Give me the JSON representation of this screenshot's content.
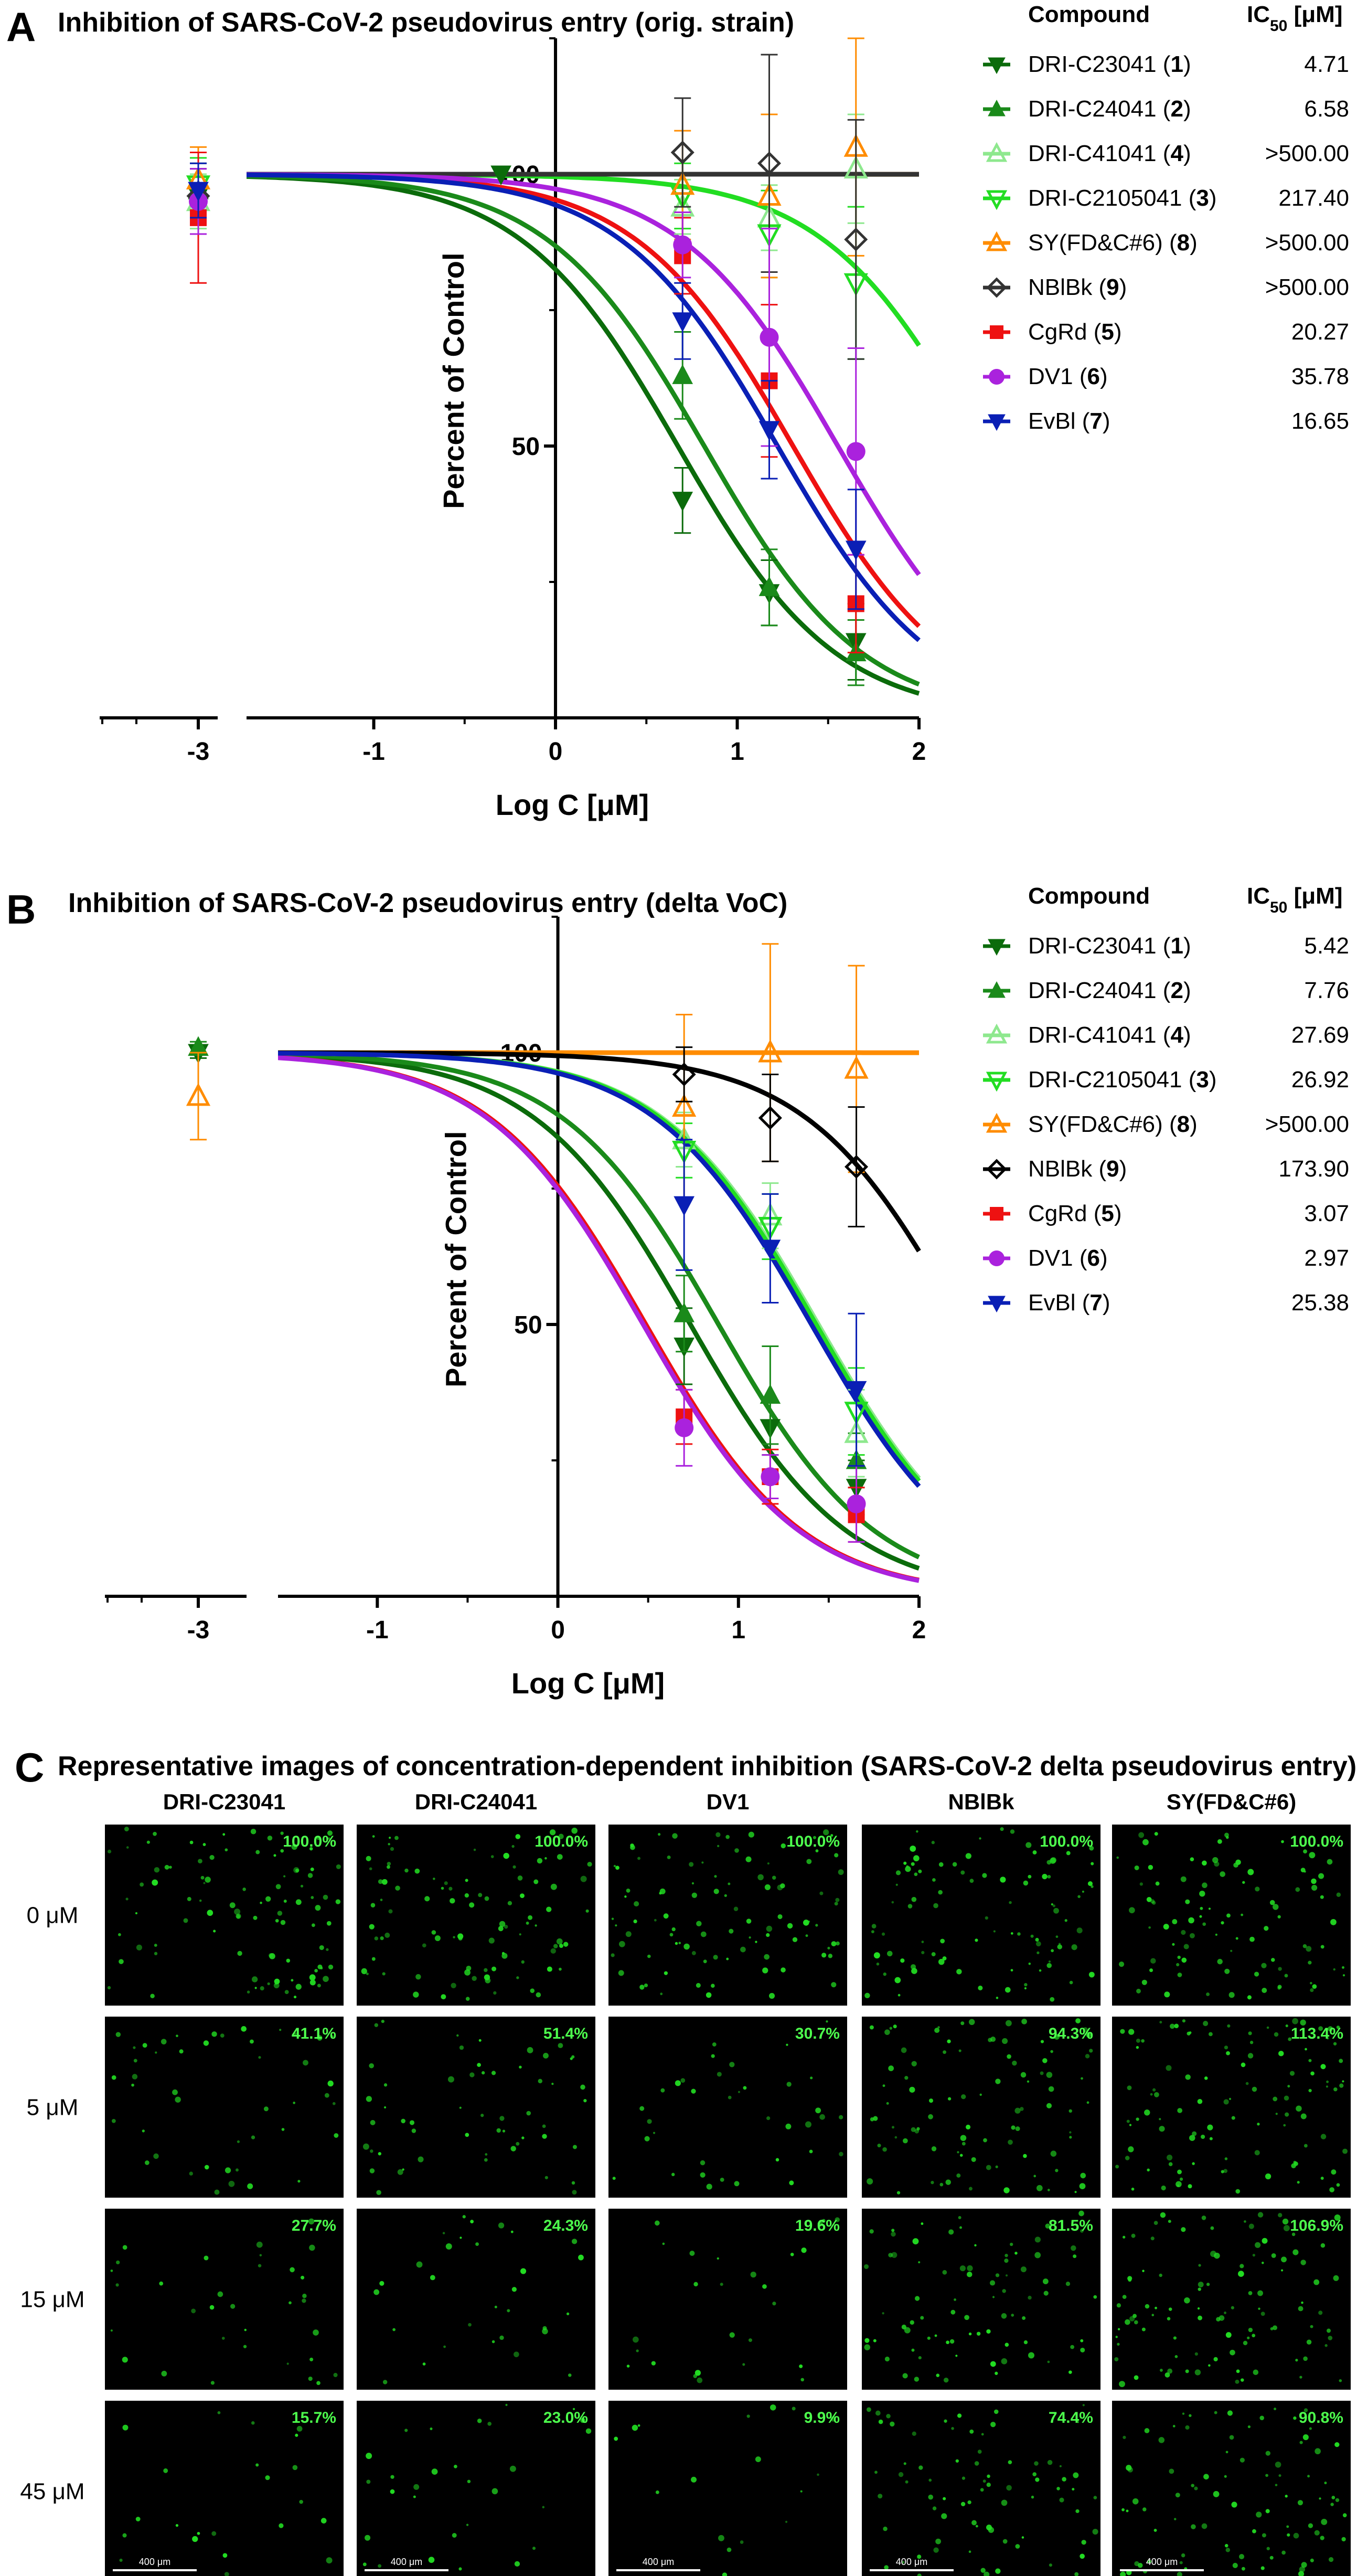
{
  "chart_data": [
    {
      "type": "line",
      "panel": "A",
      "title": "Inhibition of SARS-CoV-2 pseudovirus entry (orig. strain)",
      "xlabel": "Log C [μM]",
      "ylabel": "Percent of Control",
      "xlim": [
        -1.7,
        2
      ],
      "ylim": [
        0,
        125
      ],
      "x_ticks": [
        "-3",
        "-1",
        "0",
        "1",
        "2"
      ],
      "y_ticks": [
        "50",
        "100"
      ],
      "legend_header": {
        "compound": "Compound",
        "ic50": "IC",
        "ic50_sub": "50",
        "ic50_unit": " [μM]"
      },
      "series": [
        {
          "name": "DRI-C23041",
          "num": "1",
          "ic50": "4.71",
          "ic50_val": 4.71,
          "color": "#0b6b0b",
          "marker": "tri-down-filled",
          "points": [
            {
              "x": -3,
              "y": 96,
              "err": 5
            },
            {
              "x": -0.3,
              "y": 100,
              "err": 0
            },
            {
              "x": 0.699,
              "y": 40,
              "err": 6
            },
            {
              "x": 1.176,
              "y": 23,
              "err": 6
            },
            {
              "x": 1.653,
              "y": 14,
              "err": 7
            }
          ]
        },
        {
          "name": "DRI-C24041",
          "num": "2",
          "ic50": "6.58",
          "ic50_val": 6.58,
          "color": "#1a8a1a",
          "marker": "tri-up-filled",
          "points": [
            {
              "x": -3,
              "y": 97,
              "err": 5
            },
            {
              "x": 0.699,
              "y": 63,
              "err": 8
            },
            {
              "x": 1.176,
              "y": 24,
              "err": 7
            },
            {
              "x": 1.653,
              "y": 12,
              "err": 6
            }
          ]
        },
        {
          "name": "DRI-C41041",
          "num": "4",
          "ic50": ">500.00",
          "ic50_val": null,
          "color": "#8ee88e",
          "marker": "tri-up-open",
          "points": [
            {
              "x": -3,
              "y": 95,
              "err": 5
            },
            {
              "x": 0.699,
              "y": 94,
              "err": 5
            },
            {
              "x": 1.176,
              "y": 92,
              "err": 6
            },
            {
              "x": 1.653,
              "y": 101,
              "err": 10
            }
          ]
        },
        {
          "name": "DRI-C2105041",
          "num": "3",
          "ic50": "217.40",
          "ic50_val": 217.4,
          "color": "#22dd22",
          "marker": "tri-down-open",
          "points": [
            {
              "x": -3,
              "y": 98,
              "err": 5
            },
            {
              "x": 0.699,
              "y": 96,
              "err": 6
            },
            {
              "x": 1.176,
              "y": 89,
              "err": 8
            },
            {
              "x": 1.653,
              "y": 80,
              "err": 14
            }
          ]
        },
        {
          "name": "SY(FD&C#6)",
          "num": "8",
          "ic50": ">500.00",
          "ic50_val": null,
          "color": "#ff8c00",
          "marker": "tri-up-open",
          "points": [
            {
              "x": -3,
              "y": 99,
              "err": 6
            },
            {
              "x": 0.699,
              "y": 98,
              "err": 10
            },
            {
              "x": 1.176,
              "y": 96,
              "err": 15
            },
            {
              "x": 1.653,
              "y": 105,
              "err": 20
            }
          ]
        },
        {
          "name": "NBlBk",
          "num": "9",
          "ic50": ">500.00",
          "ic50_val": null,
          "color": "#333333",
          "marker": "diamond-open",
          "points": [
            {
              "x": -3,
              "y": 96,
              "err": 5
            },
            {
              "x": 0.699,
              "y": 104,
              "err": 10
            },
            {
              "x": 1.176,
              "y": 102,
              "err": 20
            },
            {
              "x": 1.653,
              "y": 88,
              "err": 22
            }
          ]
        },
        {
          "name": "CgRd",
          "num": "5",
          "ic50": "20.27",
          "ic50_val": 20.27,
          "color": "#ee1111",
          "marker": "square",
          "points": [
            {
              "x": -3,
              "y": 92,
              "err": 12
            },
            {
              "x": 0.699,
              "y": 85,
              "err": 7
            },
            {
              "x": 1.176,
              "y": 62,
              "err": 14
            },
            {
              "x": 1.653,
              "y": 21,
              "err": 9
            }
          ]
        },
        {
          "name": "DV1",
          "num": "6",
          "ic50": "35.78",
          "ic50_val": 35.78,
          "color": "#aa22dd",
          "marker": "circle",
          "points": [
            {
              "x": -3,
              "y": 95,
              "err": 6
            },
            {
              "x": 0.699,
              "y": 87,
              "err": 6
            },
            {
              "x": 1.176,
              "y": 70,
              "err": 20
            },
            {
              "x": 1.653,
              "y": 49,
              "err": 19
            }
          ]
        },
        {
          "name": "EvBl",
          "num": "7",
          "ic50": "16.65",
          "ic50_val": 16.65,
          "color": "#0a1fb5",
          "marker": "tri-down-filled",
          "points": [
            {
              "x": -3,
              "y": 97,
              "err": 5
            },
            {
              "x": 0.699,
              "y": 73,
              "err": 7
            },
            {
              "x": 1.176,
              "y": 53,
              "err": 9
            },
            {
              "x": 1.653,
              "y": 31,
              "err": 11
            }
          ]
        }
      ]
    },
    {
      "type": "line",
      "panel": "B",
      "title": "Inhibition of SARS-CoV-2 pseudovirus entry (delta VoC)",
      "xlabel": "Log C [μM]",
      "ylabel": "Percent of Control",
      "xlim": [
        -1.55,
        2
      ],
      "ylim": [
        0,
        125
      ],
      "x_ticks": [
        "-3",
        "-1",
        "0",
        "1",
        "2"
      ],
      "y_ticks": [
        "50",
        "100"
      ],
      "legend_header": {
        "compound": "Compound",
        "ic50": "IC",
        "ic50_sub": "50",
        "ic50_unit": " [μM]"
      },
      "series": [
        {
          "name": "DRI-C23041",
          "num": "1",
          "ic50": "5.42",
          "ic50_val": 5.42,
          "color": "#0b6b0b",
          "marker": "tri-down-filled",
          "points": [
            {
              "x": -3,
              "y": 100,
              "err": 1
            },
            {
              "x": 0.699,
              "y": 46,
              "err": 7
            },
            {
              "x": 1.176,
              "y": 31,
              "err": 5
            },
            {
              "x": 1.653,
              "y": 20,
              "err": 5
            }
          ]
        },
        {
          "name": "DRI-C24041",
          "num": "2",
          "ic50": "7.76",
          "ic50_val": 7.76,
          "color": "#1a8a1a",
          "marker": "tri-up-filled",
          "points": [
            {
              "x": -3,
              "y": 101,
              "err": 1
            },
            {
              "x": 0.699,
              "y": 52,
              "err": 7
            },
            {
              "x": 1.176,
              "y": 37,
              "err": 9
            },
            {
              "x": 1.653,
              "y": 25,
              "err": 5
            }
          ]
        },
        {
          "name": "DRI-C41041",
          "num": "4",
          "ic50": "27.69",
          "ic50_val": 27.69,
          "color": "#8ee88e",
          "marker": "tri-up-open",
          "points": [
            {
              "x": 0.699,
              "y": 84,
              "err": 5
            },
            {
              "x": 1.176,
              "y": 70,
              "err": 6
            },
            {
              "x": 1.653,
              "y": 30,
              "err": 8
            }
          ]
        },
        {
          "name": "DRI-C2105041",
          "num": "3",
          "ic50": "26.92",
          "ic50_val": 26.92,
          "color": "#22dd22",
          "marker": "tri-down-open",
          "points": [
            {
              "x": 0.699,
              "y": 82,
              "err": 5
            },
            {
              "x": 1.176,
              "y": 68,
              "err": 6
            },
            {
              "x": 1.653,
              "y": 34,
              "err": 8
            }
          ]
        },
        {
          "name": "SY(FD&C#6)",
          "num": "8",
          "ic50": ">500.00",
          "ic50_val": null,
          "color": "#ff8c00",
          "marker": "tri-up-open",
          "points": [
            {
              "x": -3,
              "y": 92,
              "err": 8
            },
            {
              "x": 0.699,
              "y": 90,
              "err": 17
            },
            {
              "x": 1.176,
              "y": 100,
              "err": 20
            },
            {
              "x": 1.653,
              "y": 97,
              "err": 19
            }
          ]
        },
        {
          "name": "NBlBk",
          "num": "9",
          "ic50": "173.90",
          "ic50_val": 173.9,
          "color": "#000000",
          "marker": "diamond-open",
          "points": [
            {
              "x": 0.699,
              "y": 96,
              "err": 5
            },
            {
              "x": 1.176,
              "y": 88,
              "err": 8
            },
            {
              "x": 1.653,
              "y": 79,
              "err": 11
            }
          ]
        },
        {
          "name": "CgRd",
          "num": "5",
          "ic50": "3.07",
          "ic50_val": 3.07,
          "color": "#ee1111",
          "marker": "square",
          "points": [
            {
              "x": 0.699,
              "y": 33,
              "err": 5
            },
            {
              "x": 1.176,
              "y": 22,
              "err": 5
            },
            {
              "x": 1.653,
              "y": 15,
              "err": 5
            }
          ]
        },
        {
          "name": "DV1",
          "num": "6",
          "ic50": "2.97",
          "ic50_val": 2.97,
          "color": "#aa22dd",
          "marker": "circle",
          "points": [
            {
              "x": 0.699,
              "y": 31,
              "err": 7
            },
            {
              "x": 1.176,
              "y": 22,
              "err": 4
            },
            {
              "x": 1.653,
              "y": 17,
              "err": 7
            }
          ]
        },
        {
          "name": "EvBl",
          "num": "7",
          "ic50": "25.38",
          "ic50_val": 25.38,
          "color": "#0a1fb5",
          "marker": "tri-down-filled",
          "points": [
            {
              "x": 0.699,
              "y": 72,
              "err": 12
            },
            {
              "x": 1.176,
              "y": 64,
              "err": 10
            },
            {
              "x": 1.653,
              "y": 38,
              "err": 14
            }
          ]
        }
      ]
    }
  ],
  "panel_c": {
    "letter": "C",
    "title": "Representative images of concentration-dependent inhibition (SARS-CoV-2 delta pseudovirus entry)",
    "columns": [
      "DRI-C23041",
      "DRI-C24041",
      "DV1",
      "NBlBk",
      "SY(FD&C#6)"
    ],
    "rows": [
      {
        "label": "0 μM",
        "values": [
          "100.0%",
          "100.0%",
          "100.0%",
          "100.0%",
          "100.0%"
        ]
      },
      {
        "label": "5 μM",
        "values": [
          "41.1%",
          "51.4%",
          "30.7%",
          "94.3%",
          "113.4%"
        ]
      },
      {
        "label": "15 μM",
        "values": [
          "27.7%",
          "24.3%",
          "19.6%",
          "81.5%",
          "106.9%"
        ]
      },
      {
        "label": "45 μM",
        "values": [
          "15.7%",
          "23.0%",
          "9.9%",
          "74.4%",
          "90.8%"
        ]
      }
    ],
    "scale_bar": "400 μm",
    "fluor_color": "#22dd22"
  }
}
